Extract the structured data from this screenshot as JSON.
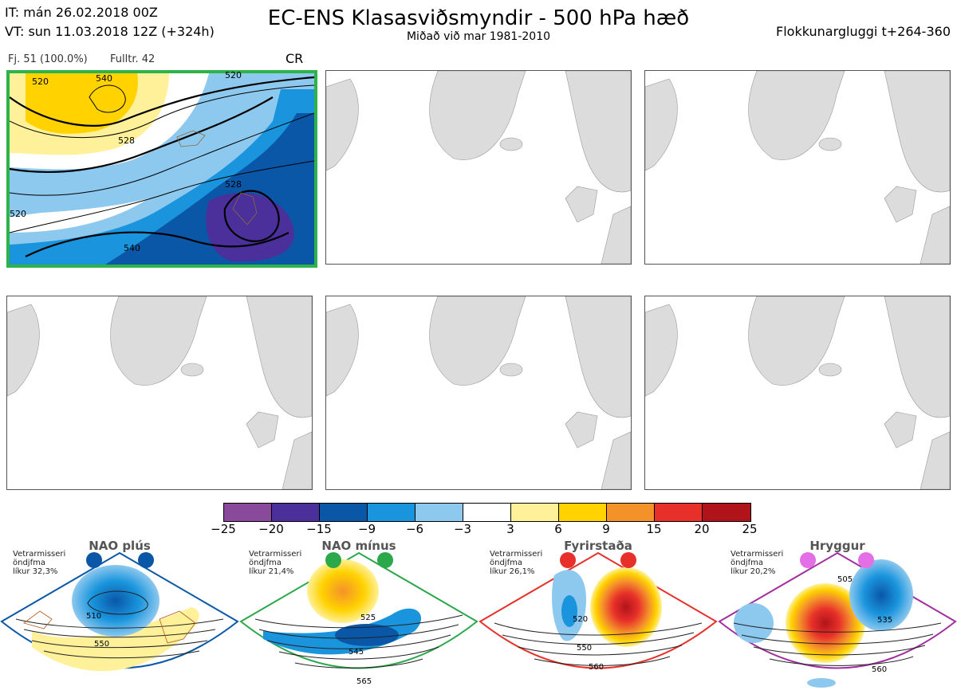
{
  "header": {
    "it_line": "IT: mán 26.02.2018 00Z",
    "vt_line": "VT: sun 11.03.2018 12Z  (+324h)",
    "title": "EC-ENS Klasasviðsmyndir - 500 hPa hæð",
    "subtitle": "Miðað við mar 1981-2010",
    "window": "Flokkunargluggi t+264-360"
  },
  "panel1": {
    "fj": "Fj. 51 (100.0%)",
    "fulltr": "Fulltr. 42",
    "regime": "CR",
    "contour_labels": [
      "520",
      "540",
      "528",
      "528",
      "540",
      "520",
      "520"
    ]
  },
  "colorbar": {
    "colors": [
      "#8a4a9c",
      "#4b2f9a",
      "#0a57a8",
      "#1a95dd",
      "#8dc8ee",
      "#ffffff",
      "#fff19a",
      "#ffd200",
      "#f4922a",
      "#e8302a",
      "#b0141a"
    ],
    "ticks": [
      "−25",
      "−20",
      "−15",
      "−9",
      "−6",
      "−3",
      "3",
      "6",
      "9",
      "15",
      "20",
      "25"
    ]
  },
  "regimes": [
    {
      "name": "NAO plús",
      "note": [
        "Vetrarmisseri",
        "öndjfma",
        "líkur 32,3%"
      ],
      "labels": [
        "510",
        "550"
      ],
      "color": "#0a57a8"
    },
    {
      "name": "NAO mínus",
      "note": [
        "Vetrarmisseri",
        "öndjfma",
        "líkur 21,4%"
      ],
      "labels": [
        "525",
        "545",
        "565"
      ],
      "color": "#2aa84a"
    },
    {
      "name": "Fyrirstaða",
      "note": [
        "Vetrarmisseri",
        "öndjfma",
        "líkur 26,1%"
      ],
      "labels": [
        "520",
        "550",
        "560"
      ],
      "color": "#e8302a"
    },
    {
      "name": "Hryggur",
      "note": [
        "Vetrarmisseri",
        "öndjfma",
        "líkur 20,2%"
      ],
      "labels": [
        "505",
        "535",
        "560"
      ],
      "color": "#a02fa0"
    }
  ]
}
